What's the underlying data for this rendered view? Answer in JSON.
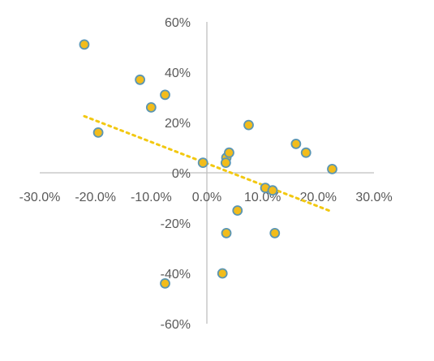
{
  "chart_data": {
    "type": "scatter",
    "title": "",
    "xlabel": "",
    "ylabel": "",
    "xlim": [
      -0.3,
      0.3
    ],
    "ylim": [
      -0.6,
      0.6
    ],
    "x_ticks": [
      "-30.0%",
      "-20.0%",
      "-10.0%",
      "0.0%",
      "10.0%",
      "20.0%",
      "30.0%"
    ],
    "y_ticks": [
      "60%",
      "40%",
      "20%",
      "0%",
      "-20%",
      "-40%",
      "-60%"
    ],
    "grid": false,
    "legend": "none",
    "colors": {
      "point_fill": "#F2BC1B",
      "point_stroke": "#5B96B3",
      "trendline": "#F2C811",
      "axis": "#BFBFBF"
    },
    "series": [
      {
        "points": [
          {
            "x": -0.22,
            "y": 0.51
          },
          {
            "x": -0.12,
            "y": 0.37
          },
          {
            "x": -0.1,
            "y": 0.26
          },
          {
            "x": -0.075,
            "y": 0.31
          },
          {
            "x": -0.195,
            "y": 0.16
          },
          {
            "x": -0.075,
            "y": -0.44
          },
          {
            "x": -0.007,
            "y": 0.04
          },
          {
            "x": 0.035,
            "y": 0.06
          },
          {
            "x": 0.034,
            "y": 0.04
          },
          {
            "x": 0.04,
            "y": 0.08
          },
          {
            "x": 0.075,
            "y": 0.19
          },
          {
            "x": 0.055,
            "y": -0.15
          },
          {
            "x": 0.035,
            "y": -0.24
          },
          {
            "x": 0.028,
            "y": -0.4
          },
          {
            "x": 0.105,
            "y": -0.06
          },
          {
            "x": 0.118,
            "y": -0.07
          },
          {
            "x": 0.122,
            "y": -0.24
          },
          {
            "x": 0.16,
            "y": 0.115
          },
          {
            "x": 0.178,
            "y": 0.08
          },
          {
            "x": 0.225,
            "y": 0.015
          }
        ]
      }
    ],
    "trendline": {
      "type": "linear",
      "style": "dotted",
      "x": [
        -0.22,
        0.225
      ],
      "y": [
        0.225,
        -0.155
      ]
    }
  }
}
